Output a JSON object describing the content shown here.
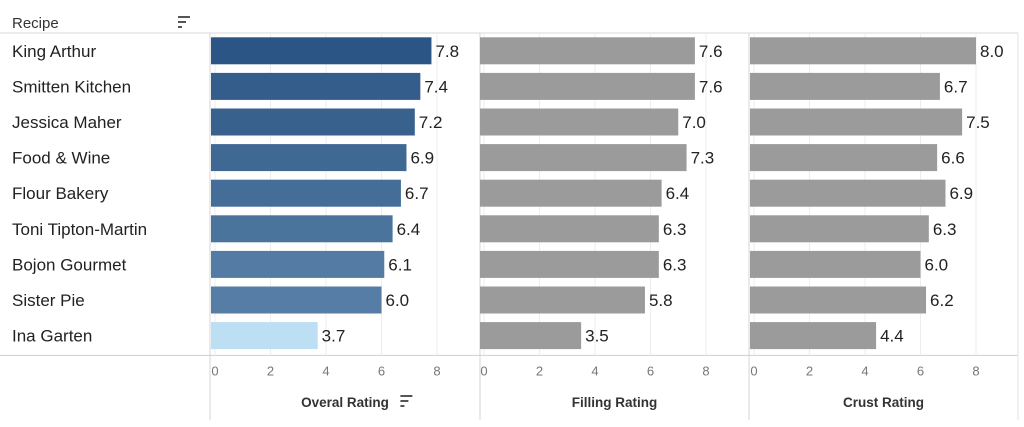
{
  "header": {
    "field_label": "Recipe"
  },
  "chart_data": {
    "type": "bar",
    "orientation": "horizontal",
    "categories": [
      "King Arthur",
      "Smitten Kitchen",
      "Jessica Maher",
      "Food & Wine",
      "Flour Bakery",
      "Toni Tipton-Martin",
      "Bojon Gourmet",
      "Sister Pie",
      "Ina Garten"
    ],
    "panels": [
      {
        "name": "Overal Rating",
        "xlabel": "Overal Rating",
        "sorted": true,
        "values": [
          7.8,
          7.4,
          7.2,
          6.9,
          6.7,
          6.4,
          6.1,
          6.0,
          3.7
        ],
        "value_labels": [
          "7.8",
          "7.4",
          "7.2",
          "6.9",
          "6.7",
          "6.4",
          "6.1",
          "6.0",
          "3.7"
        ],
        "color_scale": [
          "#bcdff3",
          "#2b5584"
        ]
      },
      {
        "name": "Filling Rating",
        "xlabel": "Filling Rating",
        "values": [
          7.6,
          7.6,
          7.0,
          7.3,
          6.4,
          6.3,
          6.3,
          5.8,
          3.5
        ],
        "value_labels": [
          "7.6",
          "7.6",
          "7.0",
          "7.3",
          "6.4",
          "6.3",
          "6.3",
          "5.8",
          "3.5"
        ],
        "color": "#9b9b9b"
      },
      {
        "name": "Crust Rating",
        "xlabel": "Crust Rating",
        "values": [
          8.0,
          6.7,
          7.5,
          6.6,
          6.9,
          6.3,
          6.0,
          6.2,
          4.4
        ],
        "value_labels": [
          "8.0",
          "6.7",
          "7.5",
          "6.6",
          "6.9",
          "6.3",
          "6.0",
          "6.2",
          "4.4"
        ],
        "color": "#9b9b9b"
      }
    ],
    "xlim": [
      0,
      9
    ],
    "xticks": [
      0,
      2,
      4,
      6,
      8
    ],
    "grid": true
  }
}
